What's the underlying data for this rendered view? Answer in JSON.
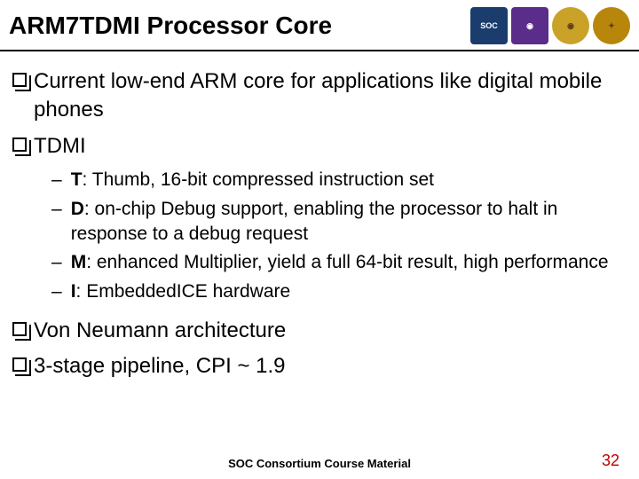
{
  "title": "ARM7TDMI Processor Core",
  "logos": [
    {
      "bg": "#1a3d6d",
      "text": "SOC"
    },
    {
      "bg": "#5a2d8a",
      "text": "◉"
    },
    {
      "bg": "#c9a227",
      "text": "◉"
    },
    {
      "bg": "#b8860b",
      "text": "✦"
    }
  ],
  "main_items": {
    "item1": "Current low-end ARM core for applications like digital mobile phones",
    "item2": "TDMI",
    "item3": "Von Neumann architecture",
    "item4": "3-stage pipeline, CPI ~ 1.9"
  },
  "sub_items": {
    "t_label": "T",
    "t_text": ": Thumb, 16-bit compressed instruction set",
    "d_label": "D",
    "d_text": ": on-chip Debug support, enabling the processor to halt in response to a debug request",
    "m_label": "M",
    "m_text": ": enhanced Multiplier, yield a full 64-bit result, high performance",
    "i_label": "I",
    "i_text": ": EmbeddedICE hardware"
  },
  "footer": "SOC Consortium Course Material",
  "page_number": "32"
}
